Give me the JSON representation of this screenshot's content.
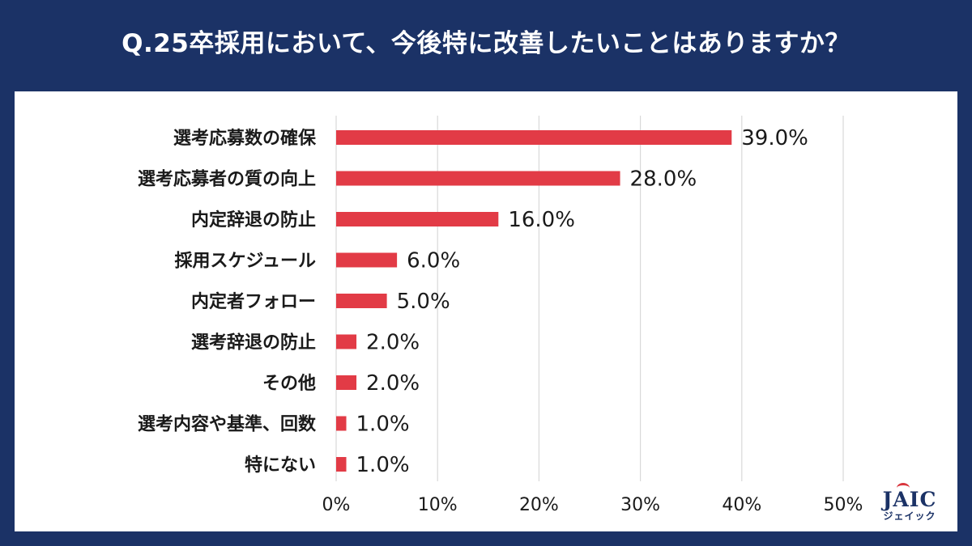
{
  "title": "Q.25卒採用において、今後特に改善したいことはありますか？",
  "colors": {
    "background": "#1b3266",
    "bar": "#e23b46",
    "grid": "#d9d9d9"
  },
  "logo": {
    "main": "JAIC",
    "sub": "ジェイック"
  },
  "chart_data": {
    "type": "bar",
    "orientation": "horizontal",
    "title": "Q.25卒採用において、今後特に改善したいことはありますか？",
    "categories": [
      "選考応募数の確保",
      "選考応募者の質の向上",
      "内定辞退の防止",
      "採用スケジュール",
      "内定者フォロー",
      "選考辞退の防止",
      "その他",
      "選考内容や基準、回数",
      "特にない"
    ],
    "values": [
      39.0,
      28.0,
      16.0,
      6.0,
      5.0,
      2.0,
      2.0,
      1.0,
      1.0
    ],
    "value_labels": [
      "39.0%",
      "28.0%",
      "16.0%",
      "6.0%",
      "5.0%",
      "2.0%",
      "2.0%",
      "1.0%",
      "1.0%"
    ],
    "xlim": [
      0,
      50
    ],
    "x_ticks": [
      0,
      10,
      20,
      30,
      40,
      50
    ],
    "x_tick_labels": [
      "0%",
      "10%",
      "20%",
      "30%",
      "40%",
      "50%"
    ],
    "xlabel": "",
    "ylabel": "",
    "grid": true
  }
}
